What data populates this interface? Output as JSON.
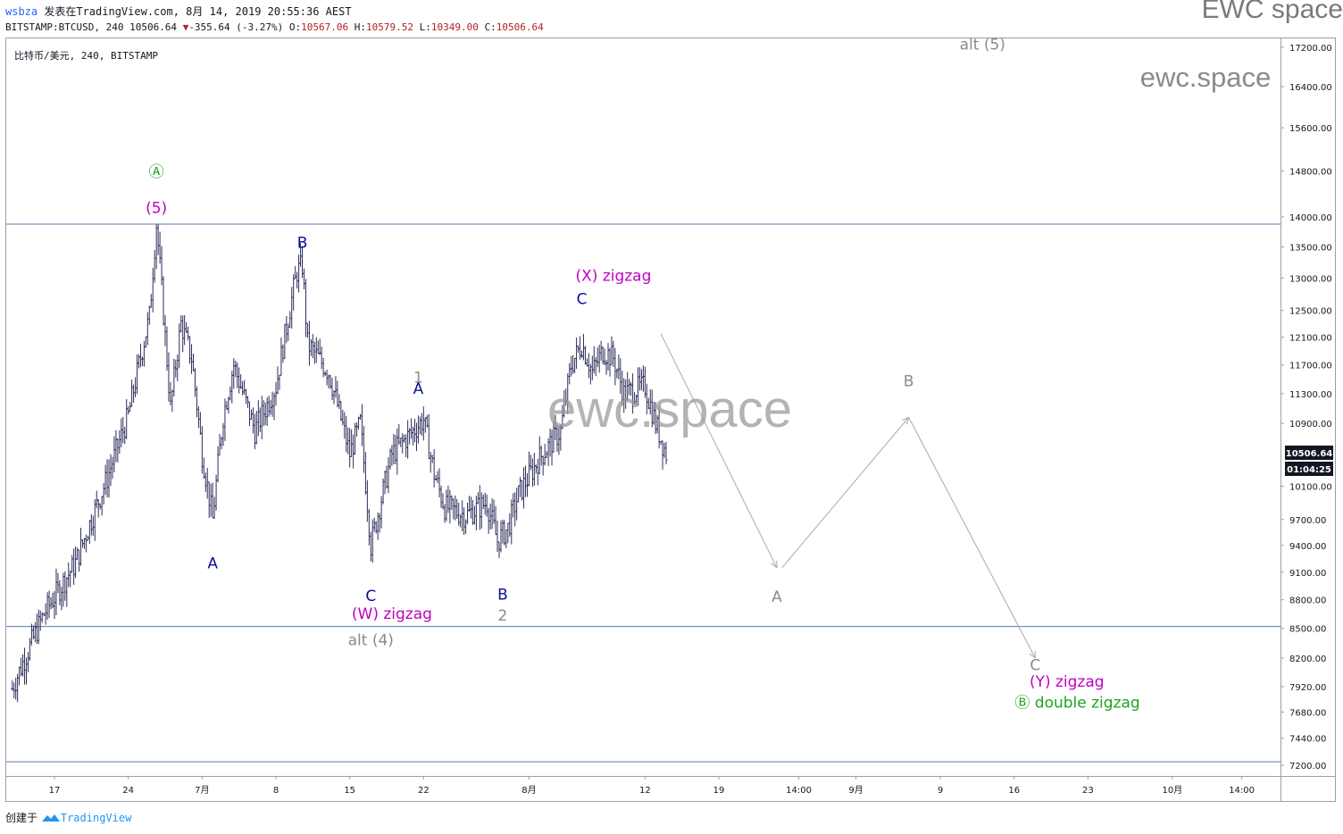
{
  "header": {
    "user": "wsbza",
    "published_text": "发表在TradingView.com, 8月 14, 2019 20:55:36 AEST",
    "symbol_line": "BITSTAMP:BTCUSD, 240 10506.64",
    "change_down_arrow": "▼",
    "change_text": "-355.64 (-3.27%)",
    "o_label": "O:",
    "o_value": "10567.06",
    "h_label": "H:",
    "h_value": "10579.52",
    "l_label": "L:",
    "l_value": "10349.00",
    "c_label": "C:",
    "c_value": "10506.64",
    "brand": "EWC space"
  },
  "chart_legend": "比特币/美元, 240, BITSTAMP",
  "watermark": {
    "big": "ewc.space",
    "small": "ewc.space"
  },
  "footer": {
    "created_label": "创建于",
    "logo_text": "TradingView"
  },
  "price_badge": {
    "price": "10506.64",
    "countdown": "01:04:25"
  },
  "colors": {
    "bars": "#2e2e5c",
    "blue_label": "#0c0c9a",
    "magenta": "#c000c0",
    "green": "#1fa31f",
    "gray": "#8a8a8a",
    "hline": "#5a78b0"
  },
  "chart_data": {
    "type": "ohlc",
    "timeframe": "240",
    "ylim": [
      7050,
      17600
    ],
    "y_scale": "log",
    "y_ticks": [
      17200,
      16400,
      15600,
      14800,
      14000,
      13500,
      13000,
      12500,
      12100,
      11700,
      11300,
      10900,
      10100,
      9700,
      9400,
      9100,
      8800,
      8500,
      8200,
      7920,
      7680,
      7440,
      7200
    ],
    "y_tick_labels": [
      "17200.00",
      "16400.00",
      "15600.00",
      "14800.00",
      "14000.00",
      "13500.00",
      "13000.00",
      "12500.00",
      "12100.00",
      "11700.00",
      "11300.00",
      "10900.00",
      "10100.00",
      "9700.00",
      "9400.00",
      "9100.00",
      "8800.00",
      "8500.00",
      "8200.00",
      "7920.00",
      "7680.00",
      "7440.00",
      "7200.00"
    ],
    "x_ticks": [
      {
        "date": "2019-06-17",
        "label": "17"
      },
      {
        "date": "2019-06-24",
        "label": "24"
      },
      {
        "date": "2019-07-01",
        "label": "7月"
      },
      {
        "date": "2019-07-08",
        "label": "8"
      },
      {
        "date": "2019-07-15",
        "label": "15"
      },
      {
        "date": "2019-07-22",
        "label": "22"
      },
      {
        "date": "2019-08-01",
        "label": "8月"
      },
      {
        "date": "2019-08-12",
        "label": "12"
      },
      {
        "date": "2019-08-19",
        "label": "19"
      },
      {
        "date": "2019-08-26 14:00",
        "label": "14:00"
      },
      {
        "date": "2019-09-01",
        "label": "9月"
      },
      {
        "date": "2019-09-09",
        "label": "9"
      },
      {
        "date": "2019-09-16",
        "label": "16"
      },
      {
        "date": "2019-09-23",
        "label": "23"
      },
      {
        "date": "2019-10-01",
        "label": "10月"
      },
      {
        "date": "2019-10-07 14:00",
        "label": "14:00"
      }
    ],
    "horizontal_lines": [
      13880,
      8520,
      7230
    ],
    "price_anchors": [
      {
        "date": "2019-06-13",
        "close": 7900
      },
      {
        "date": "2019-06-16",
        "close": 8650
      },
      {
        "date": "2019-06-19",
        "close": 9200
      },
      {
        "date": "2019-06-22",
        "close": 10200
      },
      {
        "date": "2019-06-24",
        "close": 11000
      },
      {
        "date": "2019-06-26",
        "close": 12400
      },
      {
        "date": "2019-06-26 16:00",
        "close": 13880
      },
      {
        "date": "2019-06-27 12:00",
        "close": 12100
      },
      {
        "date": "2019-06-28",
        "close": 11100
      },
      {
        "date": "2019-06-29",
        "close": 12300
      },
      {
        "date": "2019-06-30",
        "close": 11800
      },
      {
        "date": "2019-07-01",
        "close": 10500
      },
      {
        "date": "2019-07-02",
        "close": 9700
      },
      {
        "date": "2019-07-03",
        "close": 11000
      },
      {
        "date": "2019-07-04",
        "close": 11700
      },
      {
        "date": "2019-07-06",
        "close": 10800
      },
      {
        "date": "2019-07-08",
        "close": 11400
      },
      {
        "date": "2019-07-10",
        "close": 13100
      },
      {
        "date": "2019-07-10 12:00",
        "close": 13200
      },
      {
        "date": "2019-07-11",
        "close": 12000
      },
      {
        "date": "2019-07-13",
        "close": 11600
      },
      {
        "date": "2019-07-15",
        "close": 10500
      },
      {
        "date": "2019-07-16",
        "close": 10900
      },
      {
        "date": "2019-07-17",
        "close": 9400
      },
      {
        "date": "2019-07-18",
        "close": 9950
      },
      {
        "date": "2019-07-19",
        "close": 10500
      },
      {
        "date": "2019-07-21",
        "close": 10800
      },
      {
        "date": "2019-07-22",
        "close": 10950
      },
      {
        "date": "2019-07-23",
        "close": 10250
      },
      {
        "date": "2019-07-24",
        "close": 9850
      },
      {
        "date": "2019-07-26",
        "close": 9750
      },
      {
        "date": "2019-07-28",
        "close": 9900
      },
      {
        "date": "2019-07-29",
        "close": 9450
      },
      {
        "date": "2019-07-30",
        "close": 9600
      },
      {
        "date": "2019-07-31",
        "close": 10000
      },
      {
        "date": "2019-08-02",
        "close": 10450
      },
      {
        "date": "2019-08-04",
        "close": 10800
      },
      {
        "date": "2019-08-05",
        "close": 11700
      },
      {
        "date": "2019-08-06",
        "close": 12000
      },
      {
        "date": "2019-08-07",
        "close": 11600
      },
      {
        "date": "2019-08-08",
        "close": 11900
      },
      {
        "date": "2019-08-09",
        "close": 11800
      },
      {
        "date": "2019-08-10",
        "close": 11300
      },
      {
        "date": "2019-08-12",
        "close": 11400
      },
      {
        "date": "2019-08-13",
        "close": 10900
      },
      {
        "date": "2019-08-14",
        "close": 10506.64
      }
    ],
    "projection": [
      {
        "date": "2019-08-13 12:00",
        "price": 12150
      },
      {
        "date": "2019-08-24 12:00",
        "price": 9150
      },
      {
        "date": "2019-08-25",
        "price": 9150
      },
      {
        "date": "2019-09-06",
        "price": 10980
      },
      {
        "date": "2019-09-18",
        "price": 8200
      }
    ],
    "annotations": [
      {
        "text": "Ⓐ",
        "date": "2019-06-26 16:00",
        "price": 14700,
        "color": "green"
      },
      {
        "text": "(5)",
        "date": "2019-06-26 16:00",
        "price": 14070,
        "color": "magenta"
      },
      {
        "text": "A",
        "date": "2019-07-02",
        "price": 9140,
        "color": "blue"
      },
      {
        "text": "B",
        "date": "2019-07-10 12:00",
        "price": 13490,
        "color": "blue"
      },
      {
        "text": "C",
        "date": "2019-07-17",
        "price": 8790,
        "color": "blue"
      },
      {
        "text": "(W)  zigzag",
        "date": "2019-07-19",
        "price": 8600,
        "color": "magenta"
      },
      {
        "text": "alt (4)",
        "date": "2019-07-17",
        "price": 8330,
        "color": "gray"
      },
      {
        "text": "1",
        "date": "2019-07-21 12:00",
        "price": 11450,
        "color": "gray"
      },
      {
        "text": "A",
        "date": "2019-07-21 12:00",
        "price": 11300,
        "color": "blue"
      },
      {
        "text": "B",
        "date": "2019-07-29 12:00",
        "price": 8800,
        "color": "blue"
      },
      {
        "text": "2",
        "date": "2019-07-29 12:00",
        "price": 8580,
        "color": "gray"
      },
      {
        "text": "C",
        "date": "2019-08-06",
        "price": 12600,
        "color": "blue"
      },
      {
        "text": "(X)  zigzag",
        "date": "2019-08-09",
        "price": 12960,
        "color": "magenta"
      },
      {
        "text": "A",
        "date": "2019-08-24 12:00",
        "price": 8780,
        "color": "gray"
      },
      {
        "text": "B",
        "date": "2019-09-06",
        "price": 11400,
        "color": "gray"
      },
      {
        "text": "C",
        "date": "2019-09-18",
        "price": 8080,
        "color": "gray"
      },
      {
        "text": "(Y)  zigzag",
        "date": "2019-09-21",
        "price": 7920,
        "color": "magenta"
      },
      {
        "text": "Ⓑ  double zigzag",
        "date": "2019-09-22",
        "price": 7720,
        "color": "green"
      },
      {
        "text": "alt (5)",
        "date": "2019-09-13",
        "price": 17150,
        "color": "gray"
      }
    ]
  }
}
